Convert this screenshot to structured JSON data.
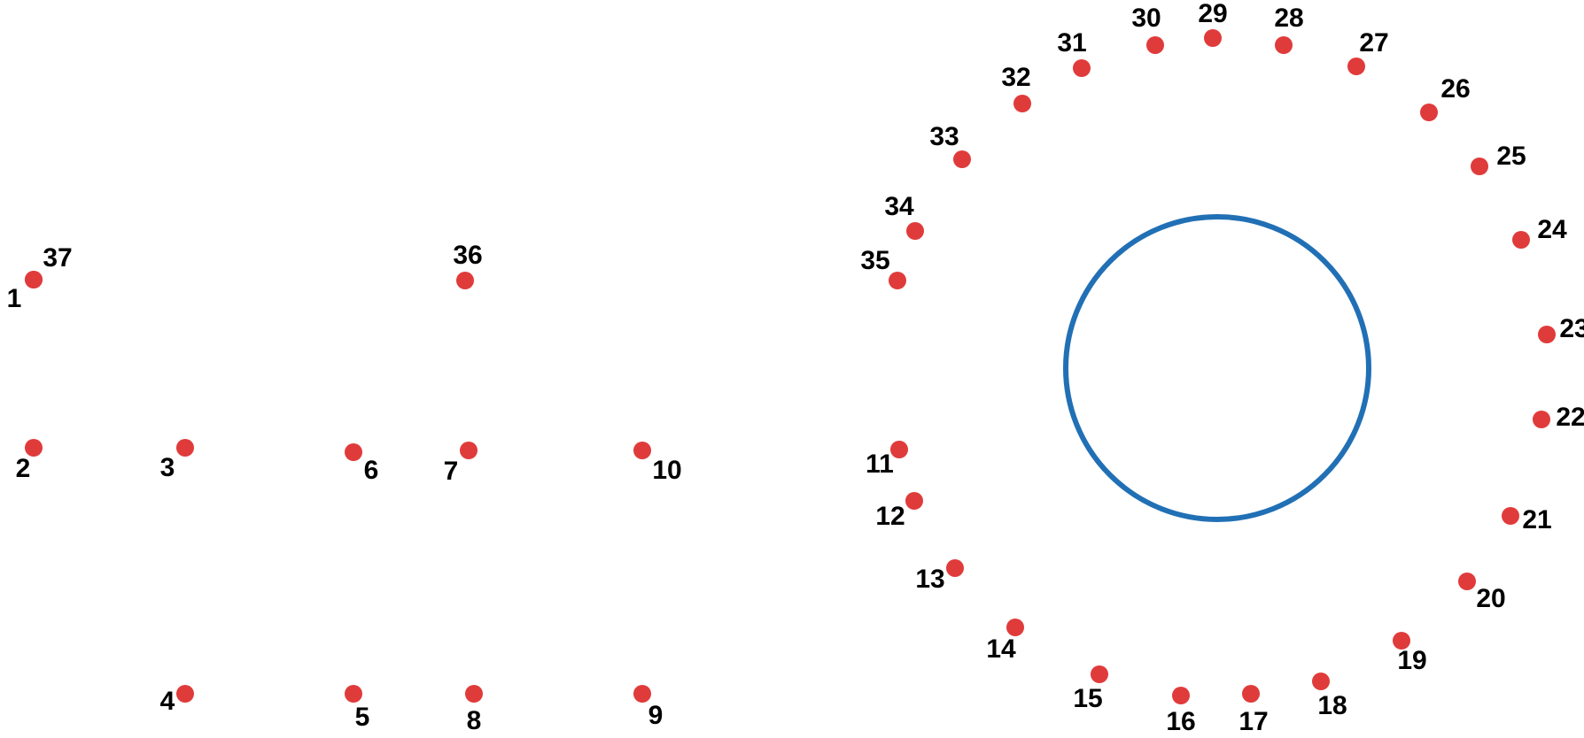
{
  "colors": {
    "dot": "#e03b3b",
    "circle": "#2170b5",
    "label": "#000000",
    "background": "#ffffff"
  },
  "dots": [
    {
      "label": "1"
    },
    {
      "label": "2"
    },
    {
      "label": "3"
    },
    {
      "label": "4"
    },
    {
      "label": "5"
    },
    {
      "label": "6"
    },
    {
      "label": "7"
    },
    {
      "label": "8"
    },
    {
      "label": "9"
    },
    {
      "label": "10"
    },
    {
      "label": "11"
    },
    {
      "label": "12"
    },
    {
      "label": "13"
    },
    {
      "label": "14"
    },
    {
      "label": "15"
    },
    {
      "label": "16"
    },
    {
      "label": "17"
    },
    {
      "label": "18"
    },
    {
      "label": "19"
    },
    {
      "label": "20"
    },
    {
      "label": "21"
    },
    {
      "label": "22"
    },
    {
      "label": "23"
    },
    {
      "label": "24"
    },
    {
      "label": "25"
    },
    {
      "label": "26"
    },
    {
      "label": "27"
    },
    {
      "label": "28"
    },
    {
      "label": "29"
    },
    {
      "label": "30"
    },
    {
      "label": "31"
    },
    {
      "label": "32"
    },
    {
      "label": "33"
    },
    {
      "label": "34"
    },
    {
      "label": "35"
    },
    {
      "label": "36"
    },
    {
      "label": "37"
    }
  ]
}
